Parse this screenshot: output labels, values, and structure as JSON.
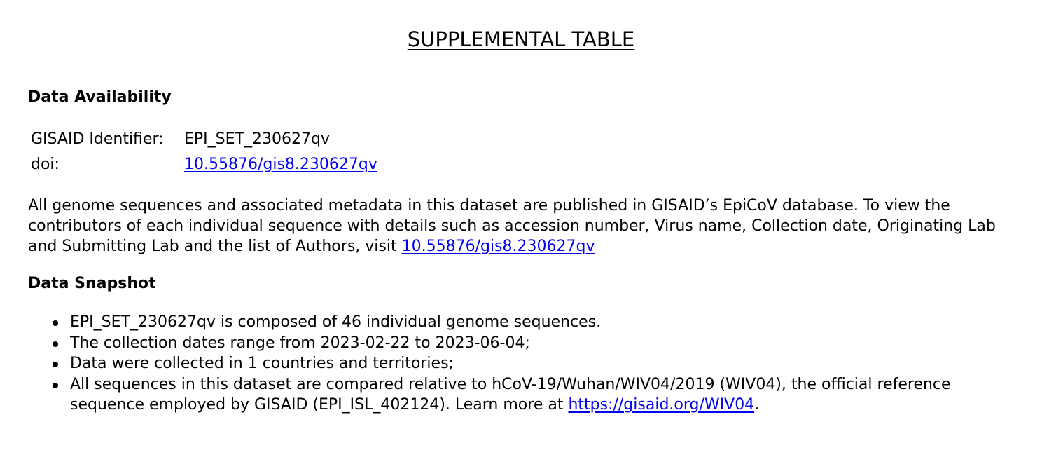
{
  "title": "SUPPLEMENTAL TABLE",
  "availability": {
    "heading": "Data Availability",
    "identifier_label": "GISAID Identifier:",
    "identifier_value": "EPI_SET_230627qv",
    "doi_label": "doi:",
    "doi_value": "10.55876/gis8.230627qv",
    "paragraph_text": "All genome sequences and associated metadata in this dataset are published in GISAID’s EpiCoV database. To view the contributors of each individual sequence with details such as accession number, Virus name, Collection date, Originating Lab and Submitting Lab and the list of Authors, visit ",
    "paragraph_link": "10.55876/gis8.230627qv"
  },
  "snapshot": {
    "heading": "Data Snapshot",
    "items": [
      "EPI_SET_230627qv is composed of 46 individual genome sequences.",
      "The collection dates range from 2023-02-22 to 2023-06-04;",
      "Data were collected in 1 countries and territories;"
    ],
    "last_item_text": "All sequences in this dataset are compared relative to hCoV-19/Wuhan/WIV04/2019 (WIV04), the official reference sequence employed by GISAID (EPI_ISL_402124). Learn more at ",
    "last_item_link": "https://gisaid.org/WIV04",
    "last_item_suffix": "."
  },
  "colors": {
    "text": "#000000",
    "link": "#0000ee",
    "background": "#ffffff"
  }
}
